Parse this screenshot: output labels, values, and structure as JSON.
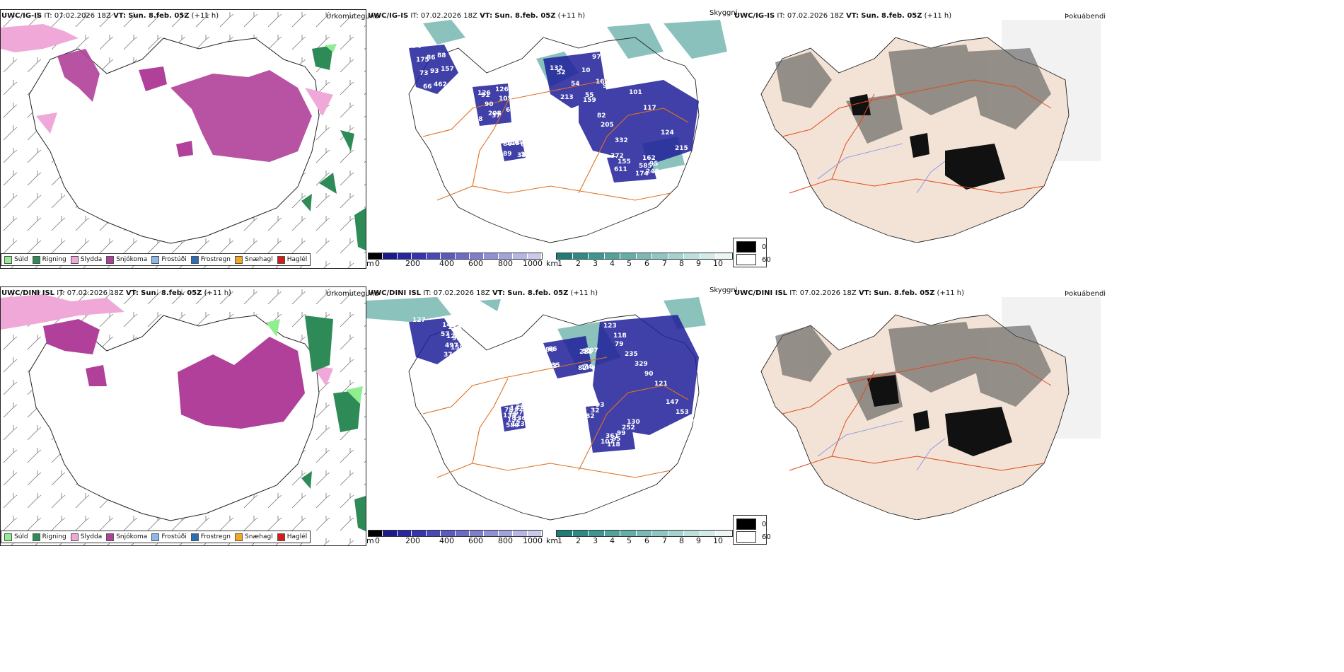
{
  "rows": [
    {
      "model": "UWC/IG-IS",
      "it_label": "IT:",
      "init_time": "07.02.2026 18Z",
      "vt_label": "VT:",
      "valid_time": "Sun. 8.feb. 05Z",
      "lead": "(+11 h)"
    },
    {
      "model": "UWC/DINI ISL",
      "it_label": "IT:",
      "init_time": "07.02.2026 18Z",
      "vt_label": "VT:",
      "valid_time": "Sun. 8.feb. 05Z",
      "lead": "(+11 h)"
    }
  ],
  "panel_titles": {
    "precip_type": "Úrkomutegund",
    "visibility": "Skyggni",
    "fog": "Þokuábendi"
  },
  "precip_legend": [
    {
      "label": "Súld",
      "color": "#90ee90"
    },
    {
      "label": "Rigning",
      "color": "#2e8b57"
    },
    {
      "label": "Slydda",
      "color": "#f0a8d8"
    },
    {
      "label": "Snjókoma",
      "color": "#b0409a"
    },
    {
      "label": "Frostúði",
      "color": "#8fb8ea"
    },
    {
      "label": "Frostregn",
      "color": "#2a6db8"
    },
    {
      "label": "Snæhagl",
      "color": "#f5a623"
    },
    {
      "label": "Haglél",
      "color": "#d91a1a"
    }
  ],
  "cbar_m": {
    "unit": "m",
    "ticks": [
      "0",
      "200",
      "400",
      "600",
      "800",
      "1000"
    ],
    "colors": [
      "#000000",
      "#1a1a8c",
      "#2626a0",
      "#3535ae",
      "#4848b8",
      "#5a5abf",
      "#6c6cc6",
      "#7e7ecd",
      "#9090d4",
      "#a3a3dc",
      "#b6b6e3",
      "#c9c9eb"
    ]
  },
  "cbar_km": {
    "unit": "km",
    "ticks": [
      "1",
      "2",
      "3",
      "4",
      "5",
      "6",
      "7",
      "8",
      "9",
      "10"
    ],
    "colors": [
      "#1f7d78",
      "#2f8a84",
      "#3f9690",
      "#52a29c",
      "#65aea8",
      "#7abab5",
      "#8fc6c1",
      "#a5d2ce",
      "#bcdfdb",
      "#d3ebe8",
      "#eaf5f4"
    ]
  },
  "fog_legend": {
    "dark": "0",
    "light": "60"
  },
  "vis_values_top": [
    "74",
    "126",
    "52",
    "82",
    "626",
    "174",
    "175",
    "208",
    "91",
    "117",
    "86",
    "585",
    "73",
    "105",
    "97",
    "159",
    "113",
    "162",
    "66",
    "68",
    "10",
    "101",
    "66",
    "248",
    "86",
    "90",
    "54",
    "215",
    "334",
    "95",
    "93",
    "126",
    "213",
    "332",
    "385",
    "372",
    "462",
    "62",
    "132",
    "124",
    "382",
    "611",
    "88",
    "91",
    "169",
    "205",
    "89",
    "155",
    "157",
    "37",
    "55"
  ],
  "vis_values_bottom": [
    "127",
    "66",
    "118",
    "251",
    "361",
    "36",
    "135",
    "121",
    "57",
    "107",
    "98",
    "86",
    "123",
    "136",
    "93",
    "159",
    "123",
    "90",
    "123",
    "32",
    "69",
    "207",
    "177",
    "147",
    "82",
    "114",
    "74",
    "329",
    "75",
    "130",
    "121",
    "92",
    "153",
    "192",
    "252",
    "497",
    "110",
    "235",
    "580",
    "99",
    "374",
    "223",
    "147",
    "78",
    "95",
    "140",
    "82",
    "79",
    "138",
    "118",
    "57"
  ]
}
